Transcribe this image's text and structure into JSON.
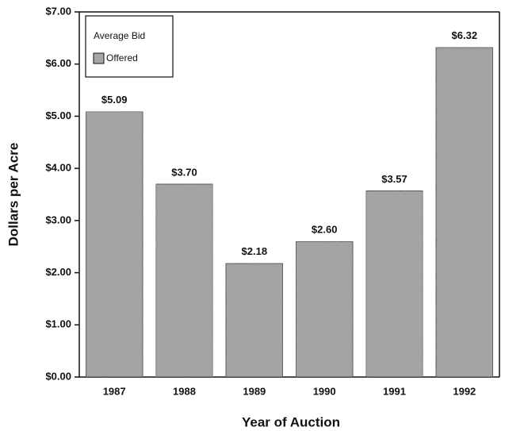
{
  "chart_data": {
    "type": "bar",
    "xlabel": "Year of Auction",
    "ylabel": "Dollars per Acre",
    "legend_title": "Average Bid",
    "categories": [
      "1987",
      "1988",
      "1989",
      "1990",
      "1991",
      "1992"
    ],
    "series": [
      {
        "name": "Offered",
        "color": "#a6a6a6",
        "values": [
          5.09,
          3.7,
          2.18,
          2.6,
          3.57,
          6.32
        ],
        "value_labels": [
          "$5.09",
          "$3.70",
          "$2.18",
          "$2.60",
          "$3.57",
          "$6.32"
        ]
      }
    ],
    "ylim": [
      0,
      7
    ],
    "yticks": [
      {
        "value": 0,
        "label": "$0.00"
      },
      {
        "value": 1,
        "label": "$1.00"
      },
      {
        "value": 2,
        "label": "$2.00"
      },
      {
        "value": 3,
        "label": "$3.00"
      },
      {
        "value": 4,
        "label": "$4.00"
      },
      {
        "value": 5,
        "label": "$5.00"
      },
      {
        "value": 6,
        "label": "$6.00"
      },
      {
        "value": 7,
        "label": "$7.00"
      }
    ],
    "legend": "upper left"
  }
}
